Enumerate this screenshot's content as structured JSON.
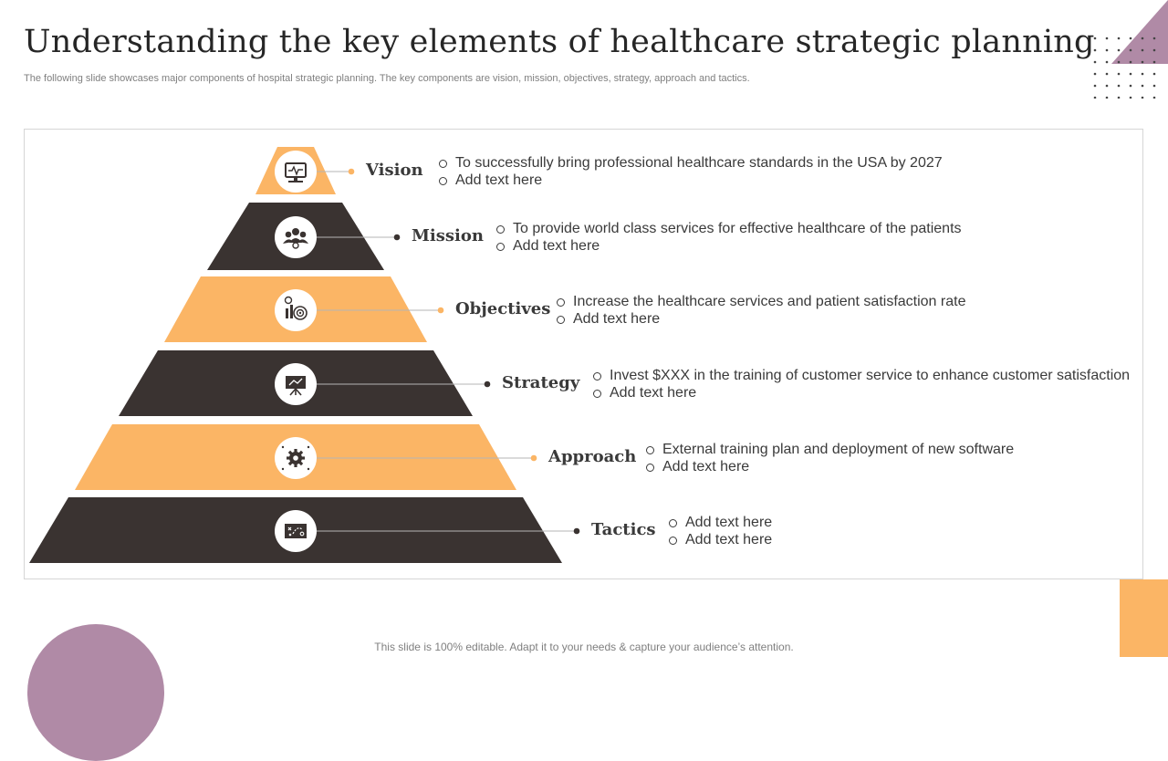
{
  "header": {
    "title": "Understanding the key elements of healthcare strategic planning",
    "subtitle": "The following slide showcases major components of hospital strategic planning. The key components are vision, mission, objectives, strategy, approach and tactics."
  },
  "colors": {
    "orange": "#fbb565",
    "dark": "#3a3331",
    "purple": "#b08aa6"
  },
  "levels": [
    {
      "label": "Vision",
      "icon": "monitor-icon",
      "shade": "orange",
      "bullets": [
        "To successfully  bring professional healthcare standards in the USA by 2027",
        "Add text here"
      ]
    },
    {
      "label": "Mission",
      "icon": "team-icon",
      "shade": "dark",
      "bullets": [
        "To provide world class services for effective healthcare of the patients",
        "Add text here"
      ]
    },
    {
      "label": "Objectives",
      "icon": "target-chart-icon",
      "shade": "orange",
      "bullets": [
        "Increase the healthcare services and patient satisfaction rate",
        "Add text here"
      ]
    },
    {
      "label": "Strategy",
      "icon": "presentation-board-icon",
      "shade": "dark",
      "bullets": [
        "Invest $XXX in the training of customer service to enhance customer satisfaction",
        "Add text here"
      ]
    },
    {
      "label": "Approach",
      "icon": "gear-icon",
      "shade": "orange",
      "bullets": [
        "External training plan and deployment of new software",
        "Add text here"
      ]
    },
    {
      "label": "Tactics",
      "icon": "game-plan-icon",
      "shade": "dark",
      "bullets": [
        "Add text here",
        "Add text here"
      ]
    }
  ],
  "footer": {
    "note": "This slide is 100% editable. Adapt it to your needs & capture your audience’s attention."
  }
}
